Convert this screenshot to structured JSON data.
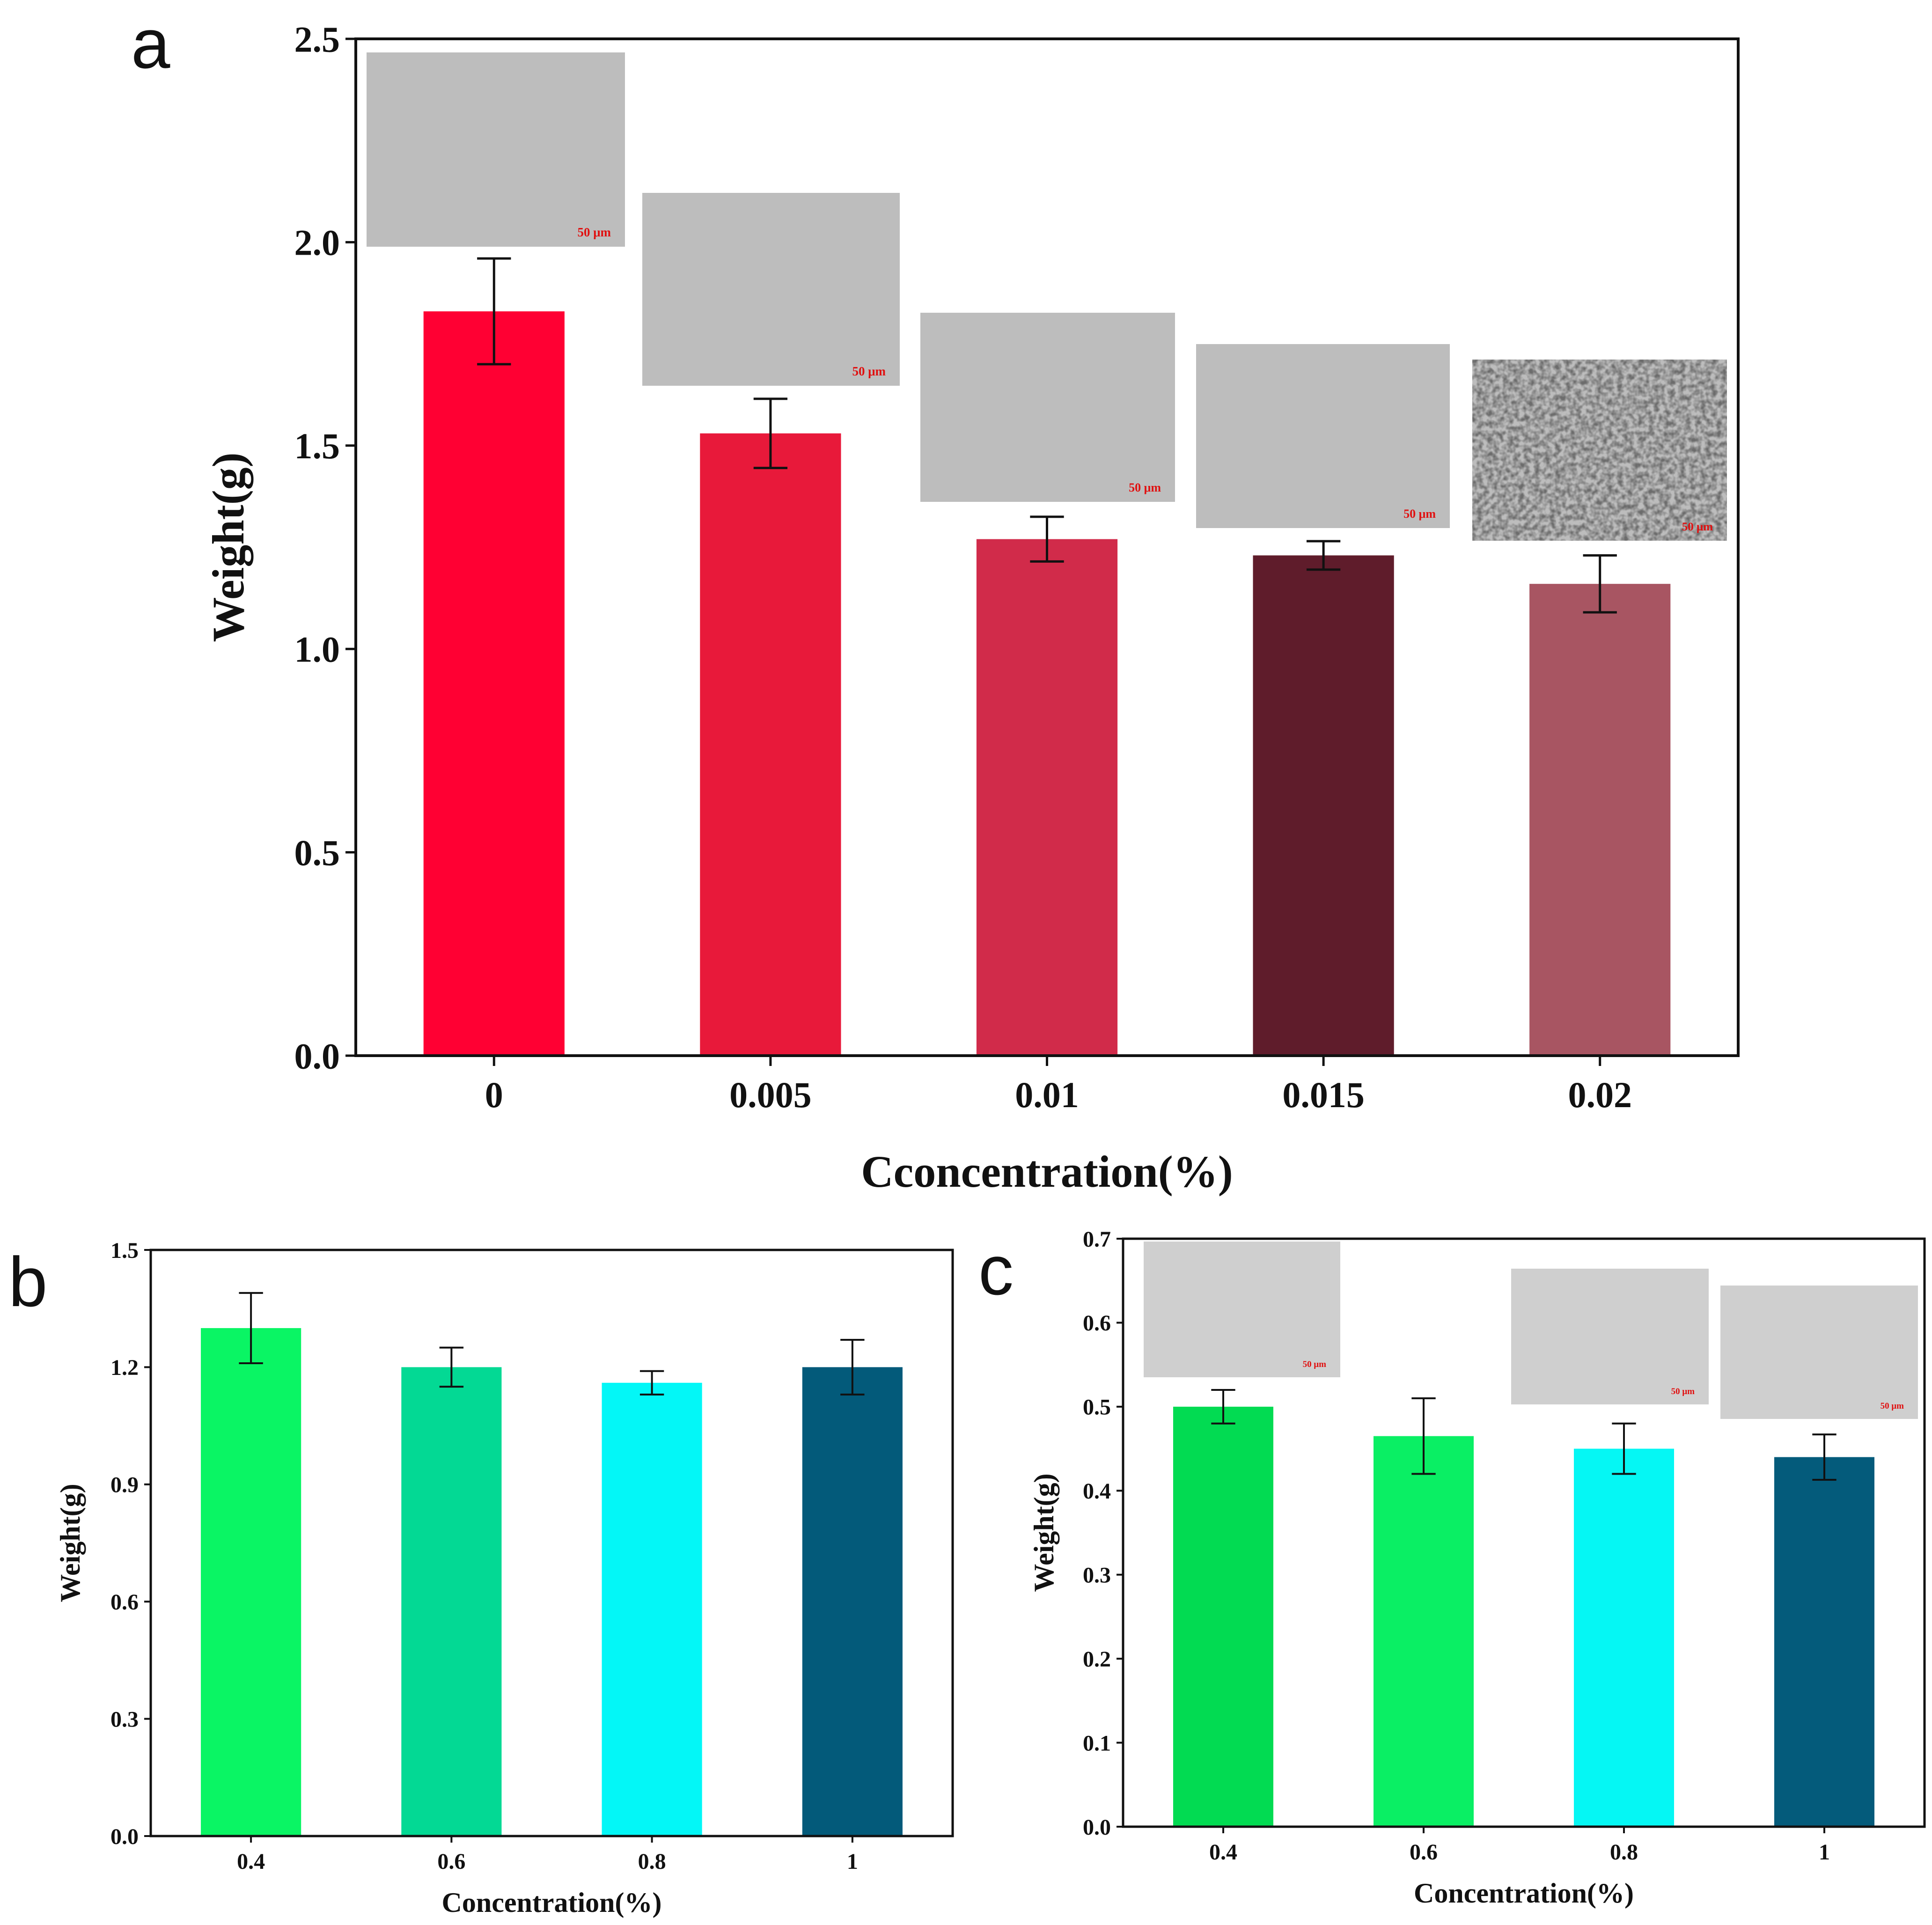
{
  "chart_data": [
    {
      "panel": "a",
      "type": "bar",
      "categories": [
        "0",
        "0.005",
        "0.01",
        "0.015",
        "0.02"
      ],
      "values": [
        1.83,
        1.53,
        1.27,
        1.23,
        1.16
      ],
      "errors": [
        0.13,
        0.085,
        0.055,
        0.035,
        0.07
      ],
      "colors": [
        "#ff0033",
        "#e8193a",
        "#d12b4a",
        "#5f1c2b",
        "#a85562"
      ],
      "xlabel": "Cconcentration(%)",
      "ylabel": "Weight(g)",
      "ylim": [
        0,
        2.5
      ],
      "yticks": [
        "0.0",
        "0.5",
        "1.0",
        "1.5",
        "2.0",
        "2.5"
      ],
      "insets": [
        {
          "label": "50 μm",
          "style": "dendritic"
        },
        {
          "label": "50 μm",
          "style": "dendritic"
        },
        {
          "label": "50 μm",
          "style": "needle"
        },
        {
          "label": "50 μm",
          "style": "needle"
        },
        {
          "label": "50 μm",
          "style": "fine"
        }
      ]
    },
    {
      "panel": "b",
      "type": "bar",
      "categories": [
        "0.4",
        "0.6",
        "0.8",
        "1"
      ],
      "values": [
        1.3,
        1.2,
        1.16,
        1.2
      ],
      "errors": [
        0.09,
        0.05,
        0.03,
        0.07
      ],
      "colors": [
        "#0af564",
        "#03d994",
        "#03f7f7",
        "#035a7a"
      ],
      "xlabel": "Concentration(%)",
      "ylabel": "Weight(g)",
      "ylim": [
        0,
        1.5
      ],
      "yticks": [
        "0.0",
        "0.3",
        "0.6",
        "0.9",
        "1.2",
        "1.5"
      ]
    },
    {
      "panel": "c",
      "type": "bar",
      "categories": [
        "0.4",
        "0.6",
        "0.8",
        "1"
      ],
      "values": [
        0.5,
        0.465,
        0.45,
        0.44
      ],
      "errors": [
        0.02,
        0.045,
        0.03,
        0.027
      ],
      "colors": [
        "#02db52",
        "#0aef64",
        "#05f7f4",
        "#045b7b"
      ],
      "xlabel": "Concentration(%)",
      "ylabel": "Weight(g)",
      "ylim": [
        0,
        0.7
      ],
      "yticks": [
        "0.0",
        "0.1",
        "0.2",
        "0.3",
        "0.4",
        "0.5",
        "0.6",
        "0.7"
      ],
      "insets": [
        {
          "label": "50 μm",
          "style": "crystals"
        },
        {
          "label": "50 μm",
          "style": "crystals"
        },
        {
          "label": "50 μm",
          "style": "rings"
        }
      ]
    }
  ],
  "colors": {
    "axis": "#111111",
    "inset_dark": "#2a2a2a",
    "inset_light": "#d9d9d9",
    "scale_bar_text": "#e01010"
  }
}
